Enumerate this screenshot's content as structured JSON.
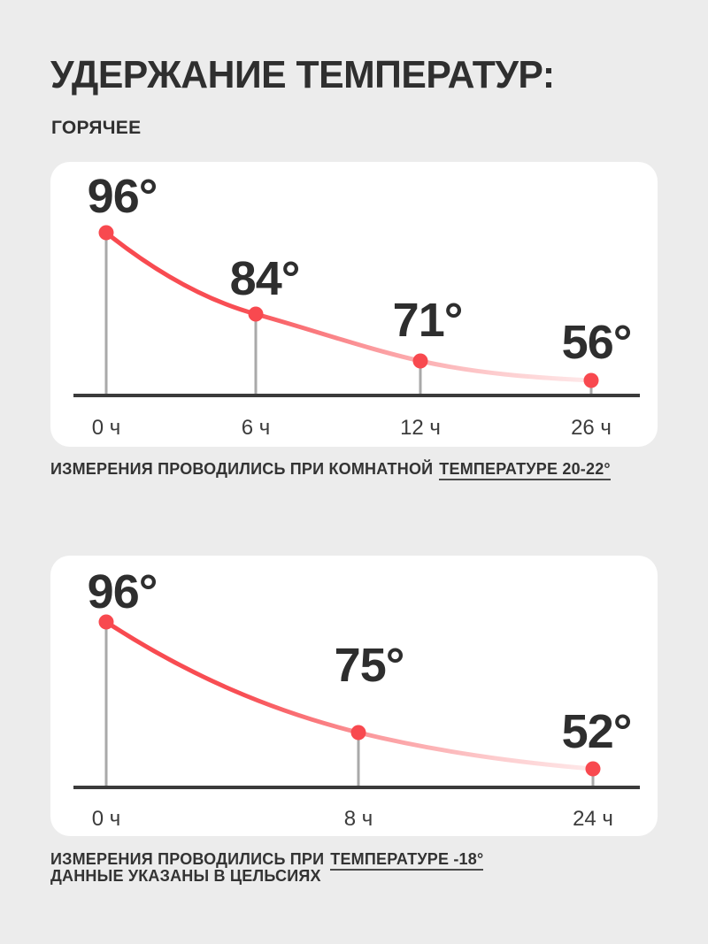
{
  "page": {
    "title": "УДЕРЖАНИЕ ТЕМПЕРАТУР:",
    "subtitle": "ГОРЯЧЕЕ"
  },
  "colors": {
    "background": "#ececec",
    "card": "#ffffff",
    "accent_red": "#f8494f",
    "stem_gray": "#a9a9a9",
    "axis_dark": "#3b3b3b",
    "text_dark": "#2e2e2e"
  },
  "chart_data": [
    {
      "type": "line",
      "title": "ГОРЯЧЕЕ",
      "x": [
        "0 ч",
        "6 ч",
        "12 ч",
        "26 ч"
      ],
      "hours": [
        0,
        6,
        12,
        26
      ],
      "values": [
        96,
        84,
        71,
        56
      ],
      "value_labels": [
        "96°",
        "84°",
        "71°",
        "56°"
      ],
      "unit": "°C",
      "legend": "none",
      "grid": false,
      "note": "ИЗМЕРЕНИЯ ПРОВОДИЛИСЬ ПРИ КОМНАТНОЙ",
      "note_underlined": "ТЕМПЕРАТУРЕ 20-22°"
    },
    {
      "type": "line",
      "title": "",
      "x": [
        "0 ч",
        "8 ч",
        "24 ч"
      ],
      "hours": [
        0,
        8,
        24
      ],
      "values": [
        96,
        75,
        52
      ],
      "value_labels": [
        "96°",
        "75°",
        "52°"
      ],
      "unit": "°C",
      "legend": "none",
      "grid": false,
      "note": "ИЗМЕРЕНИЯ ПРОВОДИЛИСЬ ПРИ",
      "note_underlined": "ТЕМПЕРАТУРЕ -18°",
      "note_line2": "ДАННЫЕ УКАЗАНЫ В ЦЕЛЬСИЯХ"
    }
  ]
}
